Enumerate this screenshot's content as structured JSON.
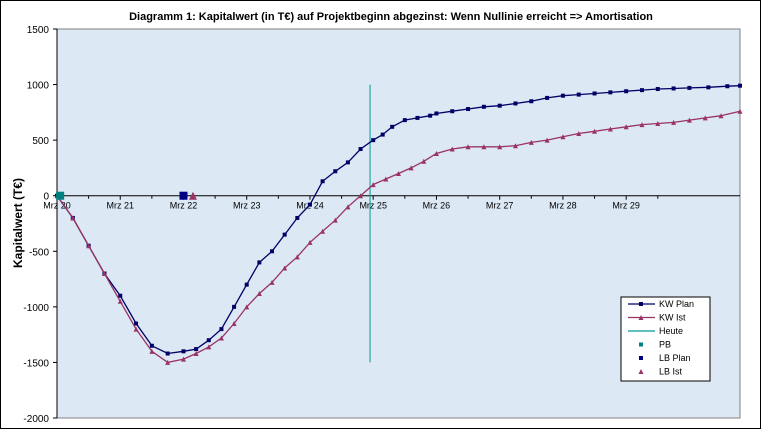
{
  "chart_data": {
    "type": "line",
    "title": "Diagramm 1: Kapitalwert (in T€) auf Projektbeginn abgezinst: Wenn Nullinie erreicht => Amortisation",
    "ylabel": "Kapitalwert (T€)",
    "ylim": [
      -2000,
      1500
    ],
    "yticks": [
      1500,
      1000,
      500,
      0,
      -500,
      -1000,
      -1500,
      -2000
    ],
    "xlim": [
      0,
      10.8
    ],
    "categories": [
      "Mrz 20",
      "Mrz 21",
      "Mrz 22",
      "Mrz 23",
      "Mrz 24",
      "Mrz 25",
      "Mrz 26",
      "Mrz 27",
      "Mrz 28",
      "Mrz 29"
    ],
    "grid": false,
    "legend_position": "bottom-right",
    "colors": {
      "plot_bg": "#dce8f4",
      "kw_plan": "#000066",
      "kw_ist": "#993366",
      "heute": "#009999",
      "pb": "#008080",
      "lb_plan": "#000080",
      "lb_ist": "#993366"
    },
    "series": [
      {
        "name": "KW Plan",
        "marker": "square",
        "x": [
          0.0,
          0.25,
          0.5,
          0.75,
          1.0,
          1.25,
          1.5,
          1.75,
          2.0,
          2.2,
          2.4,
          2.6,
          2.8,
          3.0,
          3.2,
          3.4,
          3.6,
          3.8,
          4.0,
          4.2,
          4.4,
          4.6,
          4.8,
          5.0,
          5.15,
          5.3,
          5.5,
          5.7,
          5.9,
          6.0,
          6.25,
          6.5,
          6.75,
          7.0,
          7.25,
          7.5,
          7.75,
          8.0,
          8.25,
          8.5,
          8.75,
          9.0,
          9.25,
          9.5,
          9.75,
          10.0,
          10.3,
          10.6,
          10.8
        ],
        "y": [
          0,
          -200,
          -450,
          -700,
          -900,
          -1150,
          -1350,
          -1420,
          -1400,
          -1380,
          -1300,
          -1200,
          -1000,
          -800,
          -600,
          -500,
          -350,
          -200,
          -80,
          130,
          220,
          300,
          420,
          500,
          550,
          620,
          680,
          700,
          720,
          740,
          760,
          780,
          800,
          810,
          830,
          850,
          880,
          900,
          910,
          920,
          930,
          940,
          950,
          960,
          965,
          970,
          975,
          985,
          990
        ]
      },
      {
        "name": "KW Ist",
        "marker": "triangle",
        "x": [
          0.0,
          0.25,
          0.5,
          0.75,
          1.0,
          1.25,
          1.5,
          1.75,
          2.0,
          2.2,
          2.4,
          2.6,
          2.8,
          3.0,
          3.2,
          3.4,
          3.6,
          3.8,
          4.0,
          4.2,
          4.4,
          4.6,
          4.8,
          5.0,
          5.2,
          5.4,
          5.6,
          5.8,
          6.0,
          6.25,
          6.5,
          6.75,
          7.0,
          7.25,
          7.5,
          7.75,
          8.0,
          8.25,
          8.5,
          8.75,
          9.0,
          9.25,
          9.5,
          9.75,
          10.0,
          10.25,
          10.5,
          10.8
        ],
        "y": [
          0,
          -200,
          -450,
          -700,
          -950,
          -1200,
          -1400,
          -1500,
          -1470,
          -1420,
          -1360,
          -1280,
          -1150,
          -1000,
          -880,
          -780,
          -650,
          -550,
          -420,
          -320,
          -220,
          -100,
          0,
          100,
          150,
          200,
          250,
          310,
          380,
          420,
          440,
          440,
          440,
          450,
          480,
          500,
          530,
          560,
          580,
          600,
          620,
          640,
          650,
          660,
          680,
          700,
          720,
          760
        ]
      }
    ],
    "reference_lines": [
      {
        "name": "Heute",
        "x": 4.95,
        "y_range": [
          -1500,
          1000
        ]
      }
    ],
    "points": [
      {
        "name": "PB",
        "x": 0.05,
        "y": 0
      },
      {
        "name": "LB Plan",
        "x": 2.0,
        "y": 0
      },
      {
        "name": "LB Ist",
        "x": 2.15,
        "y": 0
      }
    ]
  }
}
